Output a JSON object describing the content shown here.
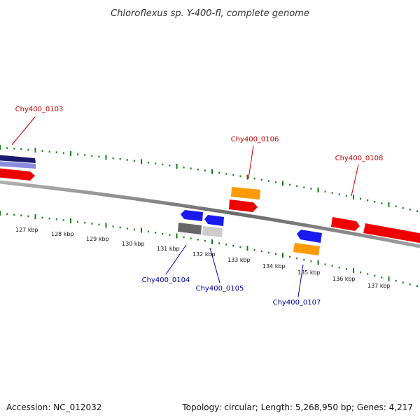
{
  "title": "Chloroflexus sp. Y-400-fl, complete genome",
  "footer": {
    "accession": "Accession: NC_012032",
    "topology": "Topology: circular; Length: 5,268,950 bp; Genes: 4,217"
  },
  "colors": {
    "backbone": "#7a7a7a",
    "ticks": "#1a7a1a",
    "forward_label": "#cc0000",
    "reverse_label": "#0000aa",
    "red": "#ee0000",
    "orange": "#ff9a00",
    "blue": "#1a1aee",
    "dark_gray": "#666666",
    "light_gray": "#cccccc",
    "navy": "#1a1a70",
    "lavender": "#8a8ae0"
  },
  "kbp_ticks": [
    "127 kbp",
    "128 kbp",
    "129 kbp",
    "130 kbp",
    "131 kbp",
    "132 kbp",
    "133 kbp",
    "134 kbp",
    "135 kbp",
    "136 kbp",
    "137 kbp"
  ],
  "gene_labels": {
    "forward": [
      "Chy400_0103",
      "Chy400_0106",
      "Chy400_0108"
    ],
    "reverse": [
      "Chy400_0104",
      "Chy400_0105",
      "Chy400_0107"
    ]
  }
}
